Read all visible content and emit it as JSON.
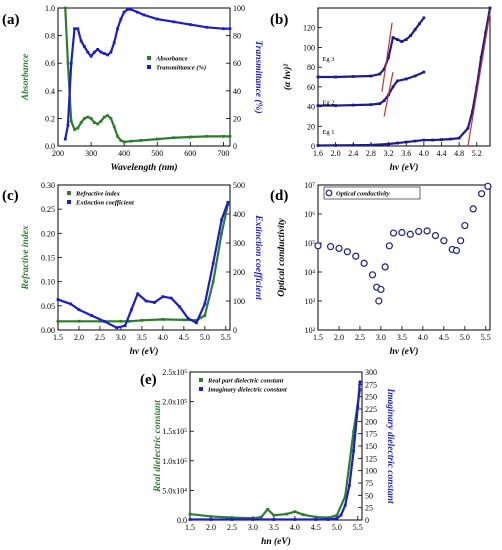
{
  "chart_data": [
    {
      "id": "a",
      "panel_label": "(a)",
      "type": "line",
      "xlabel": "Wavelength (nm)",
      "ylabel_left": "Absorbance",
      "ylabel_right": "Transmittance (%)",
      "xlim": [
        200,
        720
      ],
      "ylim_left": [
        0,
        1.0
      ],
      "ylim_right": [
        0,
        100
      ],
      "xticks": [
        200,
        300,
        400,
        500,
        600,
        700
      ],
      "yticks_left": [
        0.0,
        0.2,
        0.4,
        0.6,
        0.8,
        1.0
      ],
      "yticks_right": [
        0,
        20,
        40,
        60,
        80,
        100
      ],
      "colors": {
        "left": "#2e7d2e",
        "right": "#1c1cc8"
      },
      "legend": [
        "Absorbance",
        "Transmittance (%)"
      ],
      "series": [
        {
          "name": "Absorbance",
          "axis": "left",
          "x": [
            222,
            230,
            240,
            250,
            260,
            270,
            280,
            290,
            300,
            310,
            320,
            330,
            340,
            350,
            360,
            370,
            380,
            390,
            400,
            420,
            450,
            500,
            550,
            600,
            650,
            700,
            720
          ],
          "y": [
            1.0,
            0.6,
            0.18,
            0.12,
            0.13,
            0.17,
            0.2,
            0.21,
            0.2,
            0.17,
            0.16,
            0.18,
            0.21,
            0.22,
            0.2,
            0.14,
            0.07,
            0.04,
            0.03,
            0.035,
            0.04,
            0.05,
            0.06,
            0.065,
            0.07,
            0.07,
            0.07
          ]
        },
        {
          "name": "Transmittance (%)",
          "axis": "right",
          "x": [
            222,
            230,
            240,
            250,
            260,
            270,
            280,
            290,
            300,
            310,
            320,
            330,
            340,
            350,
            360,
            370,
            380,
            390,
            400,
            410,
            420,
            440,
            460,
            500,
            550,
            600,
            650,
            700,
            720
          ],
          "y": [
            5,
            15,
            60,
            85,
            85,
            76,
            72,
            68,
            65,
            68,
            70,
            68,
            67,
            66,
            68,
            75,
            85,
            92,
            97,
            99,
            99,
            97,
            95,
            92,
            90,
            88,
            86,
            85,
            85
          ]
        }
      ]
    },
    {
      "id": "b",
      "panel_label": "(b)",
      "type": "line",
      "xlabel": "hv (eV)",
      "ylabel_left": "(α hν)²",
      "xlim": [
        1.6,
        5.5
      ],
      "ylim_left": [
        0,
        140
      ],
      "xticks": [
        1.6,
        2.0,
        2.4,
        2.8,
        3.2,
        3.6,
        4.0,
        4.4,
        4.8,
        5.2
      ],
      "yticks_left": [
        0,
        20,
        40,
        60,
        80,
        100,
        120
      ],
      "annotations": [
        "Eg 1",
        "Eg 2",
        "Eg 3"
      ],
      "series": [
        {
          "name": "Eg 1",
          "x": [
            1.6,
            2.0,
            2.4,
            2.8,
            3.2,
            3.4,
            3.6,
            3.8,
            4.0,
            4.2,
            4.4,
            4.6,
            4.8,
            5.0,
            5.1,
            5.2,
            5.3,
            5.4,
            5.5
          ],
          "y": [
            0.5,
            0.6,
            0.8,
            1,
            2,
            3,
            4,
            5,
            6,
            6,
            6.5,
            7,
            8,
            18,
            35,
            60,
            90,
            115,
            140
          ]
        },
        {
          "name": "Eg 2",
          "x": [
            1.6,
            2.0,
            2.4,
            2.8,
            3.0,
            3.1,
            3.2,
            3.3,
            3.4,
            3.6,
            3.8,
            4.0
          ],
          "y": [
            41,
            41,
            41.5,
            42,
            43,
            46,
            52,
            60,
            66,
            68,
            71,
            75
          ]
        },
        {
          "name": "Eg 3",
          "x": [
            1.6,
            2.0,
            2.4,
            2.8,
            3.0,
            3.1,
            3.2,
            3.3,
            3.4,
            3.5,
            3.6,
            3.7,
            3.8,
            3.9,
            4.0
          ],
          "y": [
            70,
            70,
            70.5,
            71,
            73,
            78,
            90,
            110,
            108,
            106,
            108,
            112,
            118,
            124,
            130
          ]
        }
      ]
    },
    {
      "id": "c",
      "panel_label": "(c)",
      "type": "line",
      "xlabel": "hv (eV)",
      "ylabel_left": "Refractive index",
      "ylabel_right": "Extinction coefficient",
      "xlim": [
        1.5,
        5.6
      ],
      "ylim_left": [
        0,
        0.3
      ],
      "ylim_right": [
        0,
        500
      ],
      "xticks": [
        1.5,
        2.0,
        2.5,
        3.0,
        3.5,
        4.0,
        4.5,
        5.0,
        5.5
      ],
      "yticks_left": [
        0.0,
        0.05,
        0.1,
        0.15,
        0.2,
        0.25,
        0.3
      ],
      "yticks_right": [
        0,
        100,
        200,
        300,
        400,
        500
      ],
      "colors": {
        "left": "#2e7d2e",
        "right": "#1c1cc8"
      },
      "legend": [
        "Refractive index",
        "Extinction coefficient"
      ],
      "series": [
        {
          "name": "Refractive index",
          "axis": "left",
          "x": [
            1.5,
            2.0,
            2.5,
            3.0,
            3.2,
            3.5,
            4.0,
            4.5,
            4.8,
            5.0,
            5.2,
            5.4,
            5.55
          ],
          "y": [
            0.018,
            0.018,
            0.018,
            0.018,
            0.018,
            0.02,
            0.022,
            0.021,
            0.02,
            0.03,
            0.1,
            0.2,
            0.26
          ]
        },
        {
          "name": "Extinction coefficient",
          "axis": "right",
          "x": [
            1.5,
            1.8,
            2.0,
            2.3,
            2.6,
            2.9,
            3.1,
            3.25,
            3.4,
            3.6,
            3.8,
            4.0,
            4.2,
            4.4,
            4.6,
            4.8,
            5.0,
            5.2,
            5.4,
            5.55
          ],
          "y": [
            105,
            90,
            70,
            50,
            30,
            8,
            15,
            70,
            125,
            100,
            95,
            115,
            110,
            80,
            40,
            25,
            90,
            230,
            380,
            440
          ]
        }
      ]
    },
    {
      "id": "d",
      "panel_label": "(d)",
      "type": "scatter",
      "xlabel": "hv (eV)",
      "ylabel_left": "Optical conductivity",
      "log_y": true,
      "xlim": [
        1.5,
        5.6
      ],
      "ylim_left": [
        100,
        10000000
      ],
      "xticks": [
        1.5,
        2.0,
        2.5,
        3.0,
        3.5,
        4.0,
        4.5,
        5.0,
        5.5
      ],
      "ytick_labels": [
        "10²",
        "10³",
        "10⁴",
        "10⁵",
        "10⁶",
        "10⁷"
      ],
      "legend": [
        "Optical conductivity"
      ],
      "series": [
        {
          "name": "Optical conductivity",
          "x": [
            1.5,
            1.8,
            2.0,
            2.2,
            2.4,
            2.6,
            2.8,
            2.9,
            2.95,
            3.0,
            3.1,
            3.2,
            3.3,
            3.5,
            3.7,
            3.9,
            4.1,
            4.3,
            4.5,
            4.7,
            4.8,
            4.9,
            5.0,
            5.2,
            5.4,
            5.55
          ],
          "y": [
            80000,
            75000,
            65000,
            50000,
            35000,
            20000,
            8000,
            3000,
            1000,
            2500,
            15000,
            80000,
            220000,
            230000,
            200000,
            250000,
            260000,
            180000,
            120000,
            60000,
            55000,
            120000,
            400000,
            1500000,
            5000000,
            9000000
          ]
        }
      ]
    },
    {
      "id": "e",
      "panel_label": "(e)",
      "type": "line",
      "xlabel": "hn (eV)",
      "ylabel_left": "Real dielectric constant",
      "ylabel_right": "Imaginary dielectric constant",
      "xlim": [
        1.5,
        5.6
      ],
      "ylim_left": [
        0,
        250000
      ],
      "ylim_right": [
        0,
        300
      ],
      "xticks": [
        1.5,
        2.0,
        2.5,
        3.0,
        3.5,
        4.0,
        4.5,
        5.0,
        5.5
      ],
      "yticks_left": [
        0.0,
        50000,
        100000,
        150000,
        200000,
        250000
      ],
      "ytick_labels_left": [
        "0.0",
        "5.0x10⁴",
        "1.0x10⁵",
        "1.5x10⁵",
        "2.0x10⁵",
        "2.5x10⁵"
      ],
      "yticks_right": [
        0,
        25,
        50,
        75,
        100,
        125,
        150,
        175,
        200,
        225,
        250,
        275,
        300
      ],
      "colors": {
        "left": "#2e7d2e",
        "right": "#1c1cc8"
      },
      "legend": [
        "Real part dielectric constant",
        "Imaginary dielectric constant"
      ],
      "series": [
        {
          "name": "Real part dielectric constant",
          "axis": "left",
          "x": [
            1.5,
            2.0,
            2.5,
            3.0,
            3.2,
            3.35,
            3.5,
            3.8,
            4.0,
            4.2,
            4.5,
            4.8,
            5.0,
            5.2,
            5.4,
            5.55
          ],
          "y": [
            10000,
            6000,
            4000,
            3000,
            5000,
            18000,
            8000,
            10000,
            14000,
            9000,
            5000,
            4000,
            8000,
            40000,
            150000,
            220000
          ]
        },
        {
          "name": "Imaginary dielectric constant",
          "axis": "right",
          "x": [
            1.5,
            2.0,
            2.5,
            3.0,
            3.5,
            4.0,
            4.5,
            4.8,
            5.0,
            5.1,
            5.2,
            5.3,
            5.4,
            5.5,
            5.55
          ],
          "y": [
            1,
            1,
            1,
            1,
            1,
            1,
            1,
            1,
            3,
            10,
            30,
            70,
            140,
            230,
            280
          ]
        }
      ]
    }
  ]
}
